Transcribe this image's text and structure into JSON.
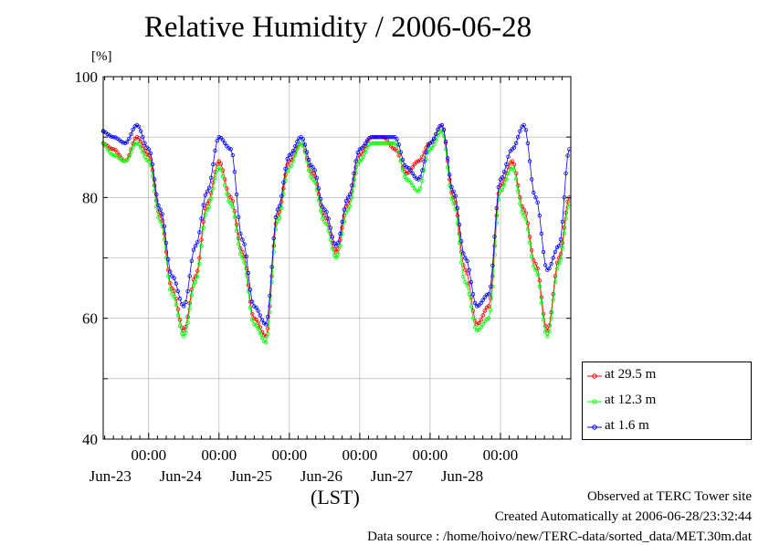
{
  "chart_data": {
    "type": "line",
    "title": "Relative Humidity / 2006-06-28",
    "ylabel": "[%]",
    "xlabel": "(LST)",
    "ylim": [
      40,
      100
    ],
    "yticks": [
      40,
      60,
      80,
      100
    ],
    "xlim": [
      "2006-06-22 08:30",
      "2006-06-28 24:00"
    ],
    "xticks": [
      {
        "time": "2006-06-23 00:00",
        "label": "00:00",
        "date_label": "Jun-23"
      },
      {
        "time": "2006-06-24 00:00",
        "label": "00:00",
        "date_label": "Jun-24"
      },
      {
        "time": "2006-06-25 00:00",
        "label": "00:00",
        "date_label": "Jun-25"
      },
      {
        "time": "2006-06-26 00:00",
        "label": "00:00",
        "date_label": "Jun-26"
      },
      {
        "time": "2006-06-27 00:00",
        "label": "00:00",
        "date_label": "Jun-27"
      },
      {
        "time": "2006-06-28 00:00",
        "label": "00:00",
        "date_label": "Jun-28"
      }
    ],
    "grid": true,
    "legend_position": "right",
    "x": [
      "2006-06-22 08:00",
      "2006-06-22 12:00",
      "2006-06-22 16:00",
      "2006-06-22 20:00",
      "2006-06-23 00:00",
      "2006-06-23 04:00",
      "2006-06-23 08:00",
      "2006-06-23 12:00",
      "2006-06-23 16:00",
      "2006-06-23 20:00",
      "2006-06-24 00:00",
      "2006-06-24 04:00",
      "2006-06-24 08:00",
      "2006-06-24 12:00",
      "2006-06-24 16:00",
      "2006-06-24 20:00",
      "2006-06-25 00:00",
      "2006-06-25 04:00",
      "2006-06-25 08:00",
      "2006-06-25 12:00",
      "2006-06-25 16:00",
      "2006-06-25 20:00",
      "2006-06-26 00:00",
      "2006-06-26 04:00",
      "2006-06-26 08:00",
      "2006-06-26 12:00",
      "2006-06-26 16:00",
      "2006-06-26 20:00",
      "2006-06-27 00:00",
      "2006-06-27 04:00",
      "2006-06-27 08:00",
      "2006-06-27 12:00",
      "2006-06-27 16:00",
      "2006-06-27 20:00",
      "2006-06-28 00:00",
      "2006-06-28 04:00",
      "2006-06-28 08:00",
      "2006-06-28 12:00",
      "2006-06-28 16:00",
      "2006-06-28 20:00",
      "2006-06-28 23:30"
    ],
    "series": [
      {
        "name": "at 29.5 m",
        "color": "#ff0000",
        "values": [
          89,
          88,
          86,
          90,
          87,
          77,
          65,
          58,
          67,
          79,
          86,
          80,
          71,
          60,
          57,
          77,
          86,
          89,
          84,
          77,
          71,
          79,
          87,
          90,
          90,
          88,
          84,
          86,
          89,
          92,
          80,
          68,
          59,
          62,
          82,
          86,
          78,
          69,
          58,
          70,
          80
        ]
      },
      {
        "name": "at 12.3 m",
        "color": "#00ff00",
        "values": [
          89,
          87,
          86,
          89,
          86,
          76,
          64,
          57,
          66,
          78,
          85,
          79,
          70,
          59,
          56,
          76,
          85,
          89,
          83,
          76,
          70,
          78,
          86,
          89,
          89,
          89,
          83,
          81,
          88,
          91,
          79,
          66,
          58,
          60,
          81,
          85,
          77,
          68,
          57,
          69,
          79
        ]
      },
      {
        "name": "at 1.6 m",
        "color": "#0000ff",
        "values": [
          91,
          90,
          89,
          92,
          88,
          78,
          67,
          62,
          72,
          81,
          90,
          88,
          73,
          62,
          59,
          78,
          87,
          90,
          85,
          78,
          72,
          80,
          88,
          90,
          90,
          90,
          85,
          83,
          89,
          92,
          81,
          70,
          62,
          64,
          83,
          88,
          92,
          80,
          68,
          72,
          88
        ]
      }
    ]
  },
  "title": "Relative Humidity / 2006-06-28",
  "y_unit": "[%]",
  "x_axis_label": "(LST)",
  "footer": {
    "line1": "Observed at TERC Tower site",
    "line2": "Created Automatically at 2006-06-28/23:32:44",
    "line3": "Data source : /home/hoivo/new/TERC-data/sorted_data/MET.30m.dat"
  },
  "legend": {
    "items": [
      {
        "label": "at 29.5 m",
        "color": "#ff0000"
      },
      {
        "label": "at 12.3 m",
        "color": "#00ff00"
      },
      {
        "label": "at 1.6 m",
        "color": "#0000ff"
      }
    ]
  }
}
